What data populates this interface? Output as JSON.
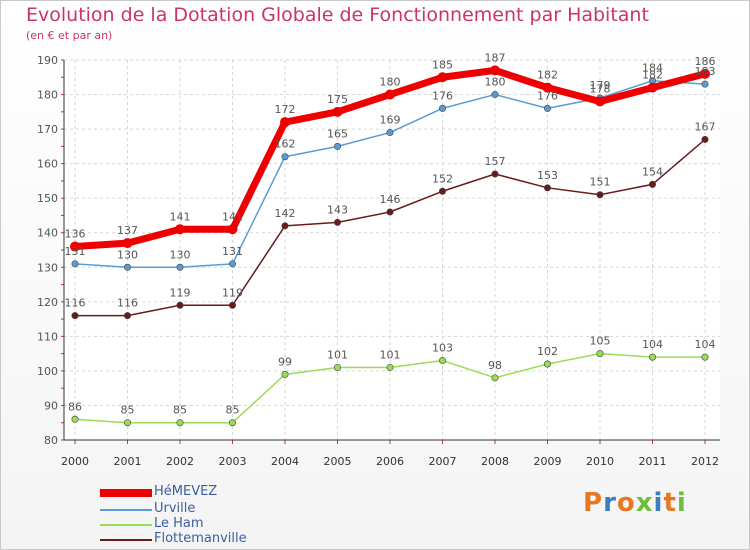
{
  "chart_data": {
    "type": "line",
    "title": "Evolution de la Dotation Globale de Fonctionnement par Habitant",
    "subtitle": "(en € et par an)",
    "xlabel": "",
    "ylabel": "",
    "ylim": [
      80,
      190
    ],
    "yticks": [
      80,
      90,
      100,
      110,
      120,
      130,
      140,
      150,
      160,
      170,
      180,
      190
    ],
    "categories": [
      "2000",
      "2001",
      "2002",
      "2003",
      "2004",
      "2005",
      "2006",
      "2007",
      "2008",
      "2009",
      "2010",
      "2011",
      "2012"
    ],
    "grid": true,
    "legend_position": "bottom-left",
    "series": [
      {
        "name": "HéMEVEZ",
        "color": "#ee0000",
        "values": [
          136,
          137,
          141,
          141,
          172,
          175,
          180,
          185,
          187,
          182,
          178,
          182,
          186
        ]
      },
      {
        "name": "Urville",
        "color": "#5b9bd5",
        "values": [
          131,
          130,
          130,
          131,
          162,
          165,
          169,
          176,
          180,
          176,
          179,
          184,
          183
        ]
      },
      {
        "name": "Le Ham",
        "color": "#99dd55",
        "values": [
          86,
          85,
          85,
          85,
          99,
          101,
          101,
          103,
          98,
          102,
          105,
          104,
          104
        ]
      },
      {
        "name": "Flottemanville",
        "color": "#6b1a1a",
        "values": [
          116,
          116,
          119,
          119,
          142,
          143,
          146,
          152,
          157,
          153,
          151,
          154,
          167
        ]
      }
    ]
  },
  "logo": {
    "text": "Proxiti",
    "colors": [
      "#e87722",
      "#3a7fc1",
      "#e87722",
      "#6bbf3a",
      "#3a7fc1",
      "#e87722",
      "#6bbf3a"
    ]
  }
}
